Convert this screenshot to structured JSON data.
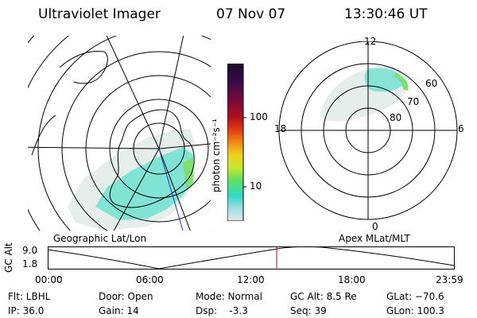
{
  "header": {
    "title": "Ultraviolet Imager",
    "date": "07 Nov 07",
    "time": "13:30:46 UT"
  },
  "colorbar": {
    "unit_label": "photon cm⁻²s⁻¹",
    "ticks": [
      "100",
      "10"
    ],
    "colors": [
      "#1a0a2e",
      "#3a0a4a",
      "#7a0a3a",
      "#b01020",
      "#e03a10",
      "#f08a10",
      "#f0d020",
      "#c8e830",
      "#60e060",
      "#30d8c8",
      "#a0e0e0",
      "#e0e8e8"
    ]
  },
  "polar_plot": {
    "mlt_labels": {
      "top": "12",
      "left": "18",
      "right": "6",
      "bottom": "0"
    },
    "lat_labels": [
      "60",
      "70",
      "80"
    ]
  },
  "map": {
    "label": "Geographic Lat/Lon"
  },
  "apex_label": "Apex MLat/MLT",
  "altitude_plot": {
    "axis_label": "GC Alt",
    "ytick_top": "9.0",
    "ytick_bottom": "1.8",
    "xticks": [
      "00:00",
      "06:00",
      "12:00",
      "18:00",
      "23:59"
    ],
    "marker_time": "13:30"
  },
  "info": {
    "flt": "Flt: LBHL",
    "ip": "IP: 36.0",
    "door": "Door: Open",
    "gain": "Gain: 14",
    "mode": "Mode: Normal",
    "dsp": "Dsp:    -3.3",
    "gc_alt": "GC Alt: 8.5 Re",
    "seq": "Seq: 39",
    "glat": "GLat: −70.6",
    "glon": "GLon: 100.3"
  }
}
